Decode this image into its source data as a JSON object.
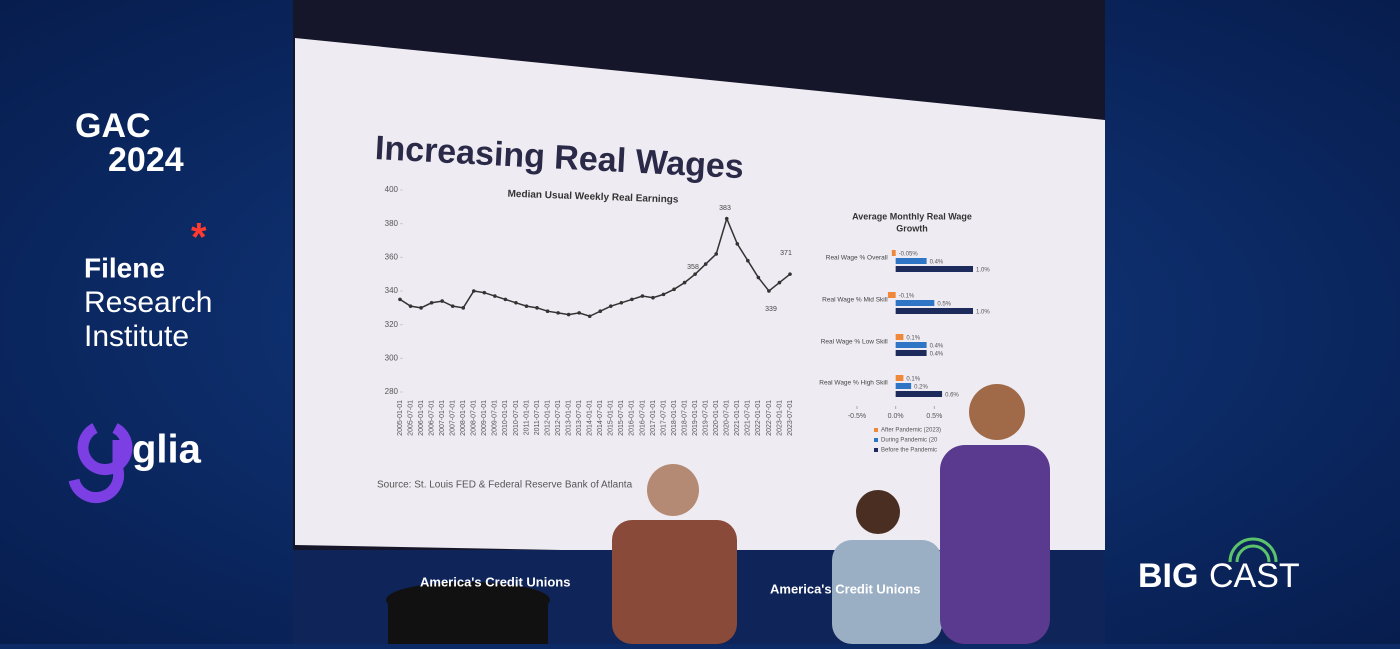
{
  "left_panel": {
    "event": [
      "GAC",
      "2024"
    ],
    "filene": [
      "Filene",
      "Research",
      "Institute"
    ],
    "glia": "glia"
  },
  "right_panel": {
    "brand": [
      "BIG",
      "CAST"
    ]
  },
  "slide": {
    "title": "Increasing Real Wages",
    "source": "Source: St. Louis FED & Federal Reserve Bank of Atlanta",
    "line_chart": {
      "type": "line",
      "title": "Median Usual Weekly Real Earnings",
      "categories": [
        "2005-01-01",
        "2005-07-01",
        "2006-01-01",
        "2006-07-01",
        "2007-01-01",
        "2007-07-01",
        "2008-01-01",
        "2008-07-01",
        "2009-01-01",
        "2009-07-01",
        "2010-01-01",
        "2010-07-01",
        "2011-01-01",
        "2011-07-01",
        "2012-01-01",
        "2012-07-01",
        "2013-01-01",
        "2013-07-01",
        "2014-01-01",
        "2014-07-01",
        "2015-01-01",
        "2015-07-01",
        "2016-01-01",
        "2016-07-01",
        "2017-01-01",
        "2017-07-01",
        "2018-01-01",
        "2018-07-01",
        "2019-01-01",
        "2019-07-01",
        "2020-01-01",
        "2020-07-01",
        "2021-01-01",
        "2021-07-01",
        "2022-01-01",
        "2022-07-01",
        "2023-01-01",
        "2023-07-01"
      ],
      "values": [
        335,
        331,
        330,
        333,
        334,
        331,
        330,
        340,
        339,
        337,
        335,
        333,
        331,
        330,
        328,
        327,
        326,
        327,
        325,
        328,
        331,
        333,
        335,
        337,
        336,
        338,
        341,
        345,
        350,
        356,
        362,
        383,
        368,
        358,
        348,
        340,
        345,
        350
      ],
      "color": "#333333",
      "ylim": [
        280,
        400
      ],
      "yticks": [
        280,
        300,
        320,
        340,
        360,
        380,
        400
      ],
      "annotations": [
        "383",
        "358",
        "371",
        "339"
      ]
    },
    "bar_chart": {
      "type": "bar",
      "title": [
        "Average Monthly Real Wage",
        "Growth"
      ],
      "categories": [
        "Real Wage % Overall",
        "Real Wage % Mid Skill",
        "Real Wage % Low Skill",
        "Real Wage % High Skill"
      ],
      "series": [
        {
          "name": "After Pandemic (2023)",
          "color": "#f0883a",
          "values": [
            -0.05,
            -0.1,
            0.1,
            0.1
          ],
          "value_labels": [
            "-0.05%",
            "-0.1%",
            "0.1%",
            "0.1%"
          ]
        },
        {
          "name": "During Pandemic (20",
          "color": "#2e75c6",
          "values": [
            0.4,
            0.5,
            0.4,
            0.2
          ],
          "value_labels": [
            "0.4%",
            "0.5%",
            "0.4%",
            "0.2%"
          ]
        },
        {
          "name": "Before the Pandemic",
          "color": "#1d2b5c",
          "values": [
            1.0,
            1.0,
            0.4,
            0.6
          ],
          "value_labels": [
            "1.0%",
            "1.0%",
            "0.4%",
            "0.6%"
          ]
        }
      ],
      "xlim": [
        -0.5,
        1.0
      ],
      "xticks": [
        {
          "value": -0.5,
          "label": "-0.5%"
        },
        {
          "value": 0,
          "label": "0.0%"
        },
        {
          "value": 0.5,
          "label": "0.5%"
        }
      ]
    }
  },
  "stage": {
    "banner": "America's Credit Unions"
  }
}
